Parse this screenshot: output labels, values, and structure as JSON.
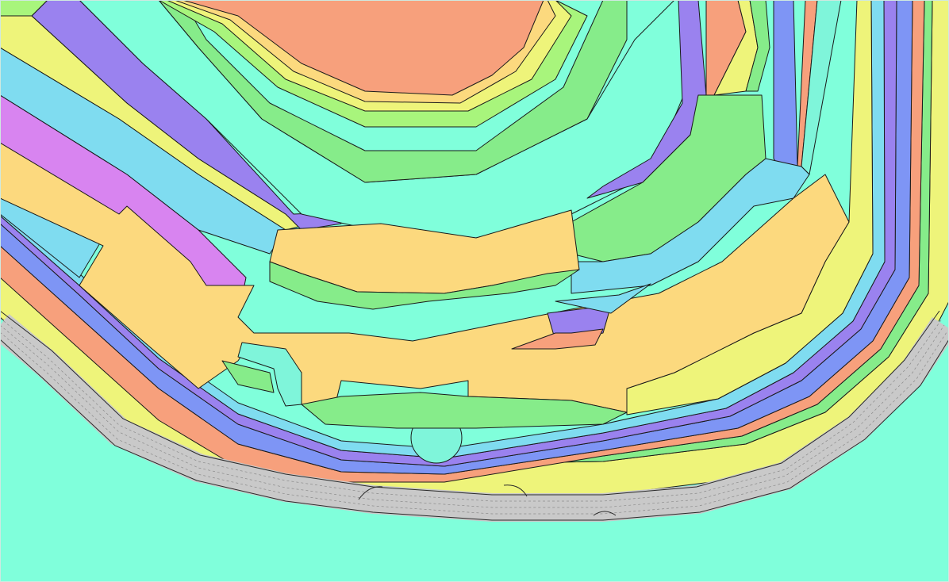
{
  "map": {
    "palette": {
      "background": "#80ffdb",
      "aqua": "#7ff5da",
      "orange": "#f7a07c",
      "yellow": "#eef47a",
      "tan": "#fcd97e",
      "green": "#86ec8a",
      "lightGreen": "#a8f57c",
      "lightBlue": "#7fdcf0",
      "purple": "#9a82ef",
      "blue": "#7e95f5",
      "magenta": "#d884f0",
      "road": "#c9c9c9"
    },
    "road": {
      "lanes": 4,
      "color": "#c9c9c9"
    }
  }
}
